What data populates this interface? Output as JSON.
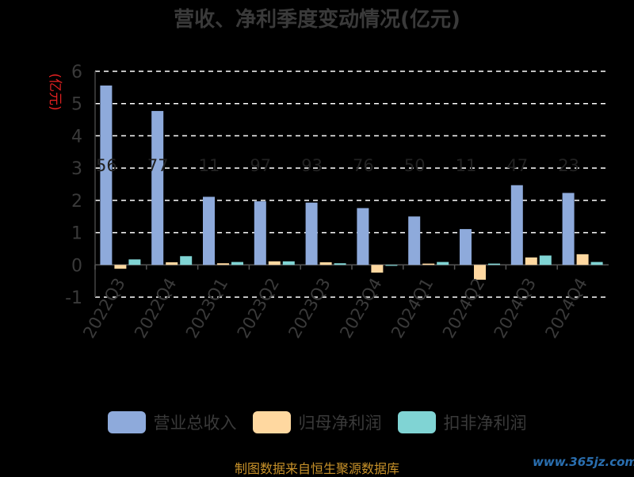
{
  "chart_data": {
    "type": "bar",
    "title": "营收、净利季度变动情况(亿元)",
    "ylabel": "(亿元)",
    "ylim": [
      -1,
      6
    ],
    "yticks": [
      -1,
      0,
      1,
      2,
      3,
      4,
      5,
      6
    ],
    "categories": [
      "2022Q3",
      "2022Q4",
      "2023Q1",
      "2023Q2",
      "2023Q3",
      "2023Q4",
      "2024Q1",
      "2024Q2",
      "2024Q3",
      "2024Q4"
    ],
    "series": [
      {
        "name": "营业总收入",
        "color": "#8eaadb",
        "values": [
          5.56,
          4.77,
          2.11,
          1.97,
          1.93,
          1.76,
          1.5,
          1.11,
          2.47,
          2.23
        ]
      },
      {
        "name": "归母净利润",
        "color": "#ffd8a0",
        "values": [
          -0.12,
          0.08,
          0.05,
          0.11,
          0.08,
          -0.24,
          0.04,
          -0.46,
          0.23,
          0.33
        ]
      },
      {
        "name": "扣非净利润",
        "color": "#80d4d4",
        "values": [
          0.17,
          0.27,
          0.09,
          0.11,
          0.05,
          -0.03,
          0.09,
          0.04,
          0.29,
          0.09
        ]
      }
    ],
    "data_labels": [
      "56",
      "77",
      "11",
      "97",
      "93",
      "76",
      "50",
      "11",
      "47",
      "23"
    ],
    "grid": true,
    "legend_position": "bottom"
  },
  "source": "制图数据来自恒生聚源数据库",
  "watermark": "www.365jz.com"
}
